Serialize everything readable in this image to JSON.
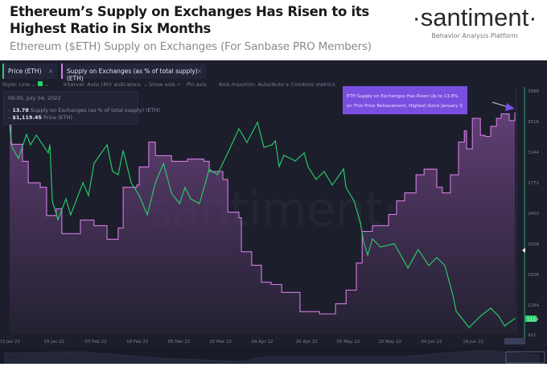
{
  "header": {
    "title": "Ethereum’s Supply on Exchanges Has Risen to its Highest Ratio in Six Months",
    "subtitle": "Ethereum ($ETH) Supply on Exchanges (For Sanbase PRO Members)",
    "logo": "·santiment·",
    "tagline": "Behavior Analysis Platform"
  },
  "tabs": [
    {
      "label": "Price (ETH)",
      "close": "×"
    },
    {
      "label": "Supply on Exchanges (as % of total supply) (ETH)",
      "close": "×"
    }
  ],
  "toolbar": {
    "style": "Style: Line ⌄",
    "interval": "Interval: Auto (4h) ⌄",
    "indicators": "Indicators: ⌄",
    "show_axis": "Show axis ✓",
    "pin_axis": "Pin axis",
    "axis_maxmin": "Axis max/min: Auto/Auto ⌄",
    "combine": "+ Combine metrics"
  },
  "tooltip": {
    "date": "09:00, July 04, 2022",
    "supply_value": "13.78",
    "supply_label": "Supply on Exchanges (as % of total supply) (ETH)",
    "price_value": "$1,119.45",
    "price_label": "Price (ETH)"
  },
  "annotation": {
    "line1": "ETH Supply on Exchanges Has Risen Up to 13.8%",
    "line2": "on This Price Retracement, Highest Since January 3"
  },
  "watermark": "·santiment·",
  "colors": {
    "price": "#27d36a",
    "supply": "#d27ce3",
    "annotation": "#7a4fe0",
    "background": "#1c1e2c"
  },
  "chart_data": {
    "type": "line",
    "title": "Ethereum’s Supply on Exchanges Has Risen to its Highest Ratio in Six Months",
    "x_unit": "days since 03 Jan 22",
    "x_tick_labels": [
      "03 Jan 22",
      "19 Jan 22",
      "03 Feb 22",
      "18 Feb 22",
      "05 Mar 22",
      "20 Mar 22",
      "04 Apr 22",
      "20 Apr 22",
      "05 May 22",
      "20 May 22",
      "04 Jun 22",
      "19 Jun 22",
      "04 Jul 22"
    ],
    "x_tick_days": [
      0,
      16,
      31,
      46,
      61,
      76,
      91,
      107,
      122,
      137,
      152,
      167,
      182
    ],
    "y_ticks": [
      "3888",
      "3516",
      "3144",
      "2772",
      "2400",
      "2028",
      "1656",
      "1284",
      "921"
    ],
    "y_tick_values": [
      3888,
      3516,
      3144,
      2772,
      2400,
      2028,
      1656,
      1284,
      921
    ],
    "ylim": [
      921,
      3888
    ],
    "current_price_label": "1119",
    "series": [
      {
        "name": "Price (ETH)",
        "axis": "right",
        "x": [
          0,
          0.9,
          3.2,
          6.1,
          7.5,
          9.6,
          13.9,
          14.5,
          15.4,
          17.4,
          20.3,
          22,
          26.4,
          28.4,
          30.4,
          35.1,
          37.1,
          39.1,
          40.9,
          43.8,
          46.7,
          49.6,
          52.5,
          55.4,
          58.3,
          61.2,
          63.2,
          65.2,
          68.4,
          71.9,
          74.8,
          78.6,
          82.6,
          85.5,
          89.3,
          91.6,
          94.5,
          95.7,
          97.1,
          98.8,
          102.9,
          106.1,
          107.5,
          110.4,
          113.3,
          116.2,
          120.3,
          121.2,
          124.1,
          126.4,
          127.5,
          129,
          130.7,
          133.6,
          138.6,
          143.5,
          147.2,
          151,
          153.9,
          156.8,
          159.7,
          160.9,
          165.5,
          169.6,
          173.3,
          176.2,
          178.3,
          182
        ],
        "y": [
          3457,
          3203,
          3066,
          3359,
          3232,
          3350,
          3135,
          3232,
          2547,
          2322,
          2576,
          2380,
          2772,
          2615,
          3007,
          3232,
          2909,
          2870,
          3164,
          2772,
          2615,
          2380,
          2772,
          3007,
          2645,
          2517,
          2713,
          2576,
          2517,
          2938,
          2870,
          3134,
          3428,
          3261,
          3506,
          3203,
          3232,
          3281,
          2968,
          3105,
          3036,
          3134,
          2968,
          2811,
          2909,
          2743,
          2938,
          2713,
          2547,
          2282,
          2057,
          1891,
          2087,
          1989,
          2028,
          1734,
          1959,
          1764,
          1861,
          1764,
          1401,
          1206,
          1010,
          1147,
          1245,
          1147,
          1029,
          1119
        ]
      },
      {
        "name": "Supply on Exchanges (as % of total supply) (ETH)",
        "axis": "hidden",
        "x": [
          0,
          0.5,
          4.6,
          6.7,
          11,
          13.3,
          16.8,
          18.8,
          25.5,
          30.4,
          35.1,
          39.1,
          40.9,
          45.8,
          46.7,
          50.1,
          52.5,
          58.3,
          64.1,
          69.9,
          71.9,
          76.8,
          78.6,
          82.6,
          83.5,
          87.2,
          90.7,
          94.2,
          98,
          104.6,
          111.6,
          117.4,
          121.2,
          124.9,
          127,
          130.7,
          136.5,
          139.4,
          142.3,
          146.4,
          149.3,
          153.9,
          155.9,
          158.8,
          161.7,
          163.8,
          164.6,
          166.7,
          169.6,
          171.3,
          173.3,
          175.4,
          177.1,
          180,
          182
        ],
        "y": [
          13.67,
          13.5,
          13.35,
          13.16,
          13.12,
          12.87,
          12.93,
          12.71,
          12.83,
          12.78,
          12.66,
          12.76,
          13.12,
          13.14,
          13.3,
          13.52,
          13.4,
          13.35,
          13.37,
          13.35,
          13.26,
          13.19,
          12.9,
          12.85,
          12.55,
          12.43,
          12.28,
          12.26,
          12.19,
          12.02,
          12,
          12.09,
          12.21,
          12.45,
          12.73,
          12.78,
          12.88,
          13,
          13.07,
          13.23,
          13.28,
          13.12,
          13.07,
          13.23,
          13.52,
          13.62,
          13.46,
          13.73,
          13.58,
          13.57,
          13.66,
          13.73,
          13.77,
          13.71,
          13.78
        ]
      }
    ]
  }
}
